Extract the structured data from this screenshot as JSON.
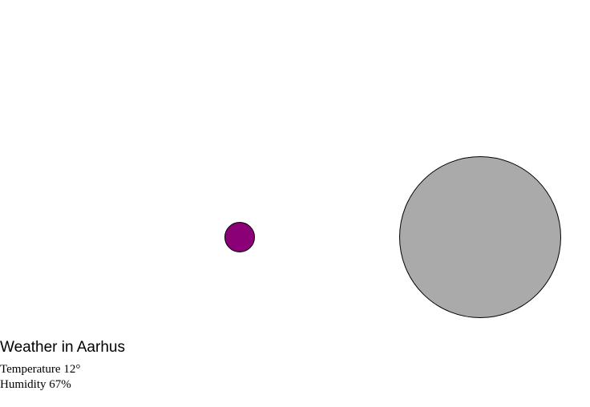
{
  "weather": {
    "title": "Weather in Aarhus",
    "temperature_label": "Temperature",
    "temperature_value": "12°",
    "humidity_label": "Humidity",
    "humidity_value": "67%"
  },
  "circles": {
    "small": {
      "color": "#8b0077"
    },
    "large": {
      "color": "#aaaaaa"
    }
  }
}
